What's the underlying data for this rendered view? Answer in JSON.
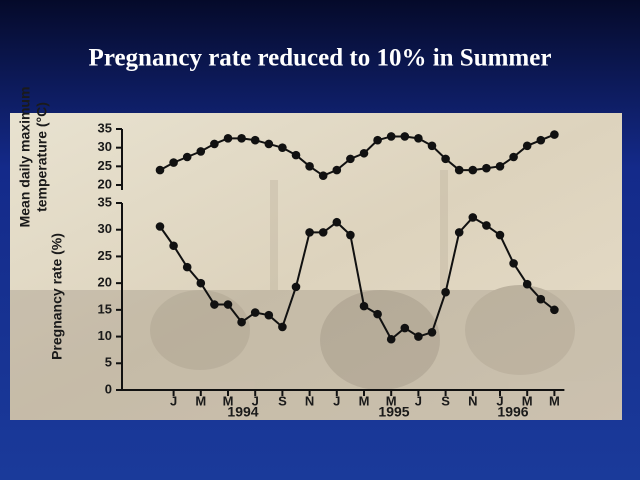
{
  "title": "Pregnancy rate reduced to 10% in Summer",
  "chart_data": [
    {
      "type": "line",
      "ylabel": [
        "Mean daily maximum",
        "temperature (°C)"
      ],
      "values": [
        24,
        26,
        27.5,
        29,
        31,
        32.5,
        32.5,
        32,
        31,
        30,
        28,
        25,
        22.5,
        24,
        27,
        28.5,
        32,
        33,
        33,
        32.5,
        30.5,
        27,
        24,
        24,
        24.5,
        25,
        27.5,
        30.5,
        32,
        33.5
      ],
      "color": "#111111",
      "ylim": [
        20,
        35
      ],
      "yticks": [
        20,
        25,
        30,
        35
      ]
    },
    {
      "type": "line",
      "ylabel": "Pregnancy rate (%)",
      "categories": [
        null,
        "J",
        null,
        "M",
        null,
        "M",
        null,
        "J",
        null,
        "S",
        null,
        "N",
        null,
        "J",
        null,
        "M",
        null,
        "M",
        null,
        "J",
        null,
        "S",
        null,
        "N",
        null,
        "J",
        null,
        "M",
        null,
        "M"
      ],
      "year_labels": [
        "1994",
        "1995",
        "1996"
      ],
      "values": [
        30.6,
        27,
        23,
        20,
        16,
        16,
        12.7,
        14.5,
        14,
        11.8,
        19.3,
        29.5,
        29.5,
        31.4,
        29,
        15.7,
        14.2,
        9.5,
        11.6,
        10,
        10.8,
        18.3,
        29.5,
        32.3,
        30.8,
        29,
        23.7,
        19.8,
        17,
        15
      ],
      "color": "#111111",
      "ylim": [
        0,
        35
      ],
      "yticks": [
        0,
        5,
        10,
        15,
        20,
        25,
        30,
        35
      ]
    }
  ]
}
